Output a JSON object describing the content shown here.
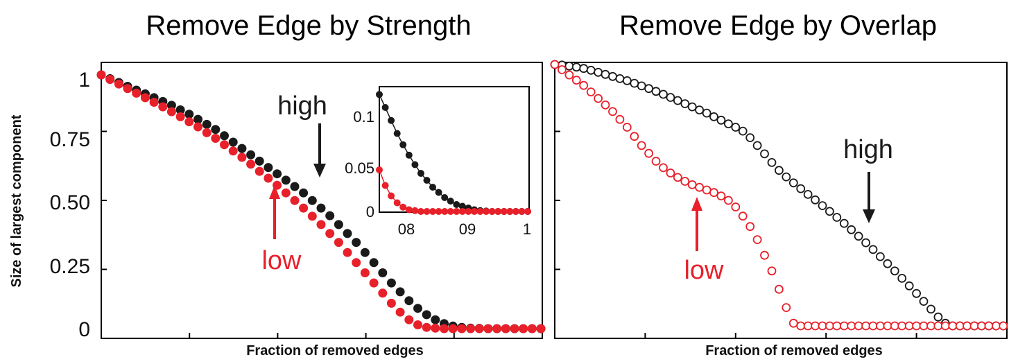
{
  "colors": {
    "high": "#1a1a1a",
    "low": "#e8202a"
  },
  "chart_data": [
    {
      "type": "scatter",
      "title": "Remove Edge by Strength",
      "xlabel": "Fraction of removed edges",
      "ylabel": "Size of largest component",
      "xlim": [
        0,
        1
      ],
      "ylim": [
        0,
        1
      ],
      "yticks": [
        "0",
        "0.25",
        "0.50",
        "0.75",
        "1"
      ],
      "grid": false,
      "marker": "filled",
      "annotations": {
        "high": "high",
        "low": "low"
      },
      "series": [
        {
          "name": "high",
          "x": [
            0.0,
            0.02,
            0.04,
            0.06,
            0.08,
            0.1,
            0.12,
            0.14,
            0.16,
            0.18,
            0.2,
            0.22,
            0.24,
            0.26,
            0.28,
            0.3,
            0.32,
            0.34,
            0.36,
            0.38,
            0.4,
            0.42,
            0.44,
            0.46,
            0.48,
            0.5,
            0.52,
            0.54,
            0.56,
            0.58,
            0.6,
            0.62,
            0.64,
            0.66,
            0.68,
            0.7,
            0.72,
            0.74,
            0.76,
            0.78,
            0.8,
            0.82,
            0.84,
            0.86,
            0.88,
            0.9,
            0.92,
            0.94,
            0.96,
            0.98,
            1.0
          ],
          "values": [
            1.0,
            0.985,
            0.97,
            0.955,
            0.94,
            0.925,
            0.91,
            0.895,
            0.88,
            0.862,
            0.845,
            0.825,
            0.805,
            0.785,
            0.76,
            0.735,
            0.71,
            0.685,
            0.66,
            0.635,
            0.61,
            0.585,
            0.56,
            0.535,
            0.505,
            0.475,
            0.445,
            0.41,
            0.375,
            0.34,
            0.3,
            0.26,
            0.22,
            0.18,
            0.145,
            0.11,
            0.08,
            0.055,
            0.035,
            0.02,
            0.01,
            0.005,
            0.002,
            0.001,
            0.0,
            0.0,
            0.0,
            0.0,
            0.0,
            0.0,
            0.0
          ]
        },
        {
          "name": "low",
          "x": [
            0.0,
            0.02,
            0.04,
            0.06,
            0.08,
            0.1,
            0.12,
            0.14,
            0.16,
            0.18,
            0.2,
            0.22,
            0.24,
            0.26,
            0.28,
            0.3,
            0.32,
            0.34,
            0.36,
            0.38,
            0.4,
            0.42,
            0.44,
            0.46,
            0.48,
            0.5,
            0.52,
            0.54,
            0.56,
            0.58,
            0.6,
            0.62,
            0.64,
            0.66,
            0.68,
            0.7,
            0.72,
            0.74,
            0.76,
            0.78,
            0.8,
            0.82,
            0.84,
            0.86,
            0.88,
            0.9,
            0.92,
            0.94,
            0.96,
            0.98,
            1.0
          ],
          "values": [
            1.0,
            0.982,
            0.964,
            0.946,
            0.928,
            0.91,
            0.892,
            0.874,
            0.855,
            0.835,
            0.815,
            0.795,
            0.772,
            0.75,
            0.725,
            0.7,
            0.675,
            0.648,
            0.62,
            0.593,
            0.565,
            0.535,
            0.505,
            0.475,
            0.443,
            0.41,
            0.375,
            0.34,
            0.3,
            0.26,
            0.22,
            0.18,
            0.14,
            0.1,
            0.065,
            0.035,
            0.015,
            0.005,
            0.002,
            0.0,
            0.0,
            0.0,
            0.0,
            0.0,
            0.0,
            0.0,
            0.0,
            0.0,
            0.0,
            0.0,
            0.0
          ]
        }
      ],
      "inset": {
        "xlim": [
          0.75,
          1
        ],
        "ylim": [
          0,
          0.14
        ],
        "xticks": [
          "08",
          "09",
          "1"
        ],
        "yticks": [
          "0",
          "0.05",
          "0.1"
        ],
        "series": [
          {
            "name": "high",
            "x": [
              0.75,
              0.76,
              0.77,
              0.78,
              0.79,
              0.8,
              0.81,
              0.82,
              0.83,
              0.84,
              0.85,
              0.86,
              0.87,
              0.88,
              0.89,
              0.9,
              0.91,
              0.92,
              0.93,
              0.94,
              0.95,
              0.96,
              0.97,
              0.98,
              0.99,
              1.0
            ],
            "values": [
              0.135,
              0.12,
              0.105,
              0.09,
              0.077,
              0.065,
              0.054,
              0.044,
              0.036,
              0.028,
              0.022,
              0.016,
              0.012,
              0.008,
              0.006,
              0.004,
              0.002,
              0.001,
              0.0005,
              0.0,
              0.0,
              0.0,
              0.0,
              0.0,
              0.0,
              0.0
            ]
          },
          {
            "name": "low",
            "x": [
              0.75,
              0.76,
              0.77,
              0.78,
              0.79,
              0.8,
              0.81,
              0.82,
              0.83,
              0.84,
              0.85,
              0.86,
              0.87,
              0.88,
              0.89,
              0.9,
              0.91,
              0.92,
              0.93,
              0.94,
              0.95,
              0.96,
              0.97,
              0.98,
              0.99,
              1.0
            ],
            "values": [
              0.048,
              0.03,
              0.018,
              0.01,
              0.005,
              0.002,
              0.001,
              0.0,
              0.0,
              0.0,
              0.0,
              0.0,
              0.0,
              0.0,
              0.0,
              0.0,
              0.0,
              0.0,
              0.0,
              0.0,
              0.0,
              0.0,
              0.0,
              0.0,
              0.0,
              0.0
            ]
          }
        ]
      }
    },
    {
      "type": "scatter",
      "title": "Remove Edge by Overlap",
      "xlabel": "Fraction of removed edges",
      "ylabel": "",
      "xlim": [
        0,
        1
      ],
      "ylim": [
        0,
        1
      ],
      "yticks": [],
      "grid": false,
      "marker": "open",
      "annotations": {
        "high": "high",
        "low": "low"
      },
      "series": [
        {
          "name": "high",
          "x": [
            0.0,
            0.016,
            0.032,
            0.048,
            0.064,
            0.08,
            0.096,
            0.112,
            0.128,
            0.144,
            0.16,
            0.176,
            0.192,
            0.208,
            0.224,
            0.24,
            0.256,
            0.272,
            0.288,
            0.304,
            0.32,
            0.336,
            0.352,
            0.368,
            0.384,
            0.4,
            0.416,
            0.432,
            0.448,
            0.464,
            0.48,
            0.496,
            0.512,
            0.528,
            0.544,
            0.56,
            0.576,
            0.592,
            0.608,
            0.624,
            0.64,
            0.656,
            0.672,
            0.688,
            0.704,
            0.72,
            0.736,
            0.752,
            0.768,
            0.784,
            0.8,
            0.816,
            0.832,
            0.848,
            0.864,
            0.88,
            0.896,
            0.912,
            0.928,
            0.944,
            0.96,
            0.976,
            0.992
          ],
          "values": [
            1.0,
            0.998,
            0.994,
            0.99,
            0.985,
            0.978,
            0.97,
            0.962,
            0.954,
            0.946,
            0.938,
            0.928,
            0.918,
            0.908,
            0.897,
            0.886,
            0.874,
            0.862,
            0.85,
            0.838,
            0.826,
            0.814,
            0.8,
            0.787,
            0.773,
            0.76,
            0.745,
            0.72,
            0.69,
            0.658,
            0.625,
            0.595,
            0.57,
            0.547,
            0.525,
            0.503,
            0.482,
            0.46,
            0.438,
            0.415,
            0.392,
            0.368,
            0.343,
            0.318,
            0.292,
            0.265,
            0.238,
            0.21,
            0.182,
            0.153,
            0.124,
            0.094,
            0.064,
            0.034,
            0.01,
            0.0,
            0.0,
            0.0,
            0.0,
            0.0,
            0.0,
            0.0,
            0.0
          ]
        },
        {
          "name": "low",
          "x": [
            0.0,
            0.016,
            0.032,
            0.048,
            0.064,
            0.08,
            0.096,
            0.112,
            0.128,
            0.144,
            0.16,
            0.176,
            0.192,
            0.208,
            0.224,
            0.24,
            0.256,
            0.272,
            0.288,
            0.304,
            0.32,
            0.336,
            0.352,
            0.368,
            0.384,
            0.4,
            0.416,
            0.432,
            0.448,
            0.464,
            0.48,
            0.496,
            0.512,
            0.528,
            0.544,
            0.56,
            0.576,
            0.592,
            0.608,
            0.624,
            0.64,
            0.656,
            0.672,
            0.688,
            0.704,
            0.72,
            0.736,
            0.752,
            0.768,
            0.784,
            0.8,
            0.816,
            0.832,
            0.848,
            0.864,
            0.88,
            0.896,
            0.912,
            0.928,
            0.944,
            0.96,
            0.976,
            0.992
          ],
          "values": [
            1.0,
            0.98,
            0.96,
            0.94,
            0.92,
            0.895,
            0.87,
            0.845,
            0.82,
            0.79,
            0.76,
            0.725,
            0.69,
            0.66,
            0.63,
            0.605,
            0.585,
            0.568,
            0.553,
            0.54,
            0.53,
            0.52,
            0.51,
            0.497,
            0.48,
            0.455,
            0.42,
            0.38,
            0.33,
            0.27,
            0.21,
            0.14,
            0.07,
            0.01,
            0.0,
            0.0,
            0.0,
            0.0,
            0.0,
            0.0,
            0.0,
            0.0,
            0.0,
            0.0,
            0.0,
            0.0,
            0.0,
            0.0,
            0.0,
            0.0,
            0.0,
            0.0,
            0.0,
            0.0,
            0.0,
            0.0,
            0.0,
            0.0,
            0.0,
            0.0,
            0.0,
            0.0,
            0.0
          ]
        }
      ]
    }
  ]
}
